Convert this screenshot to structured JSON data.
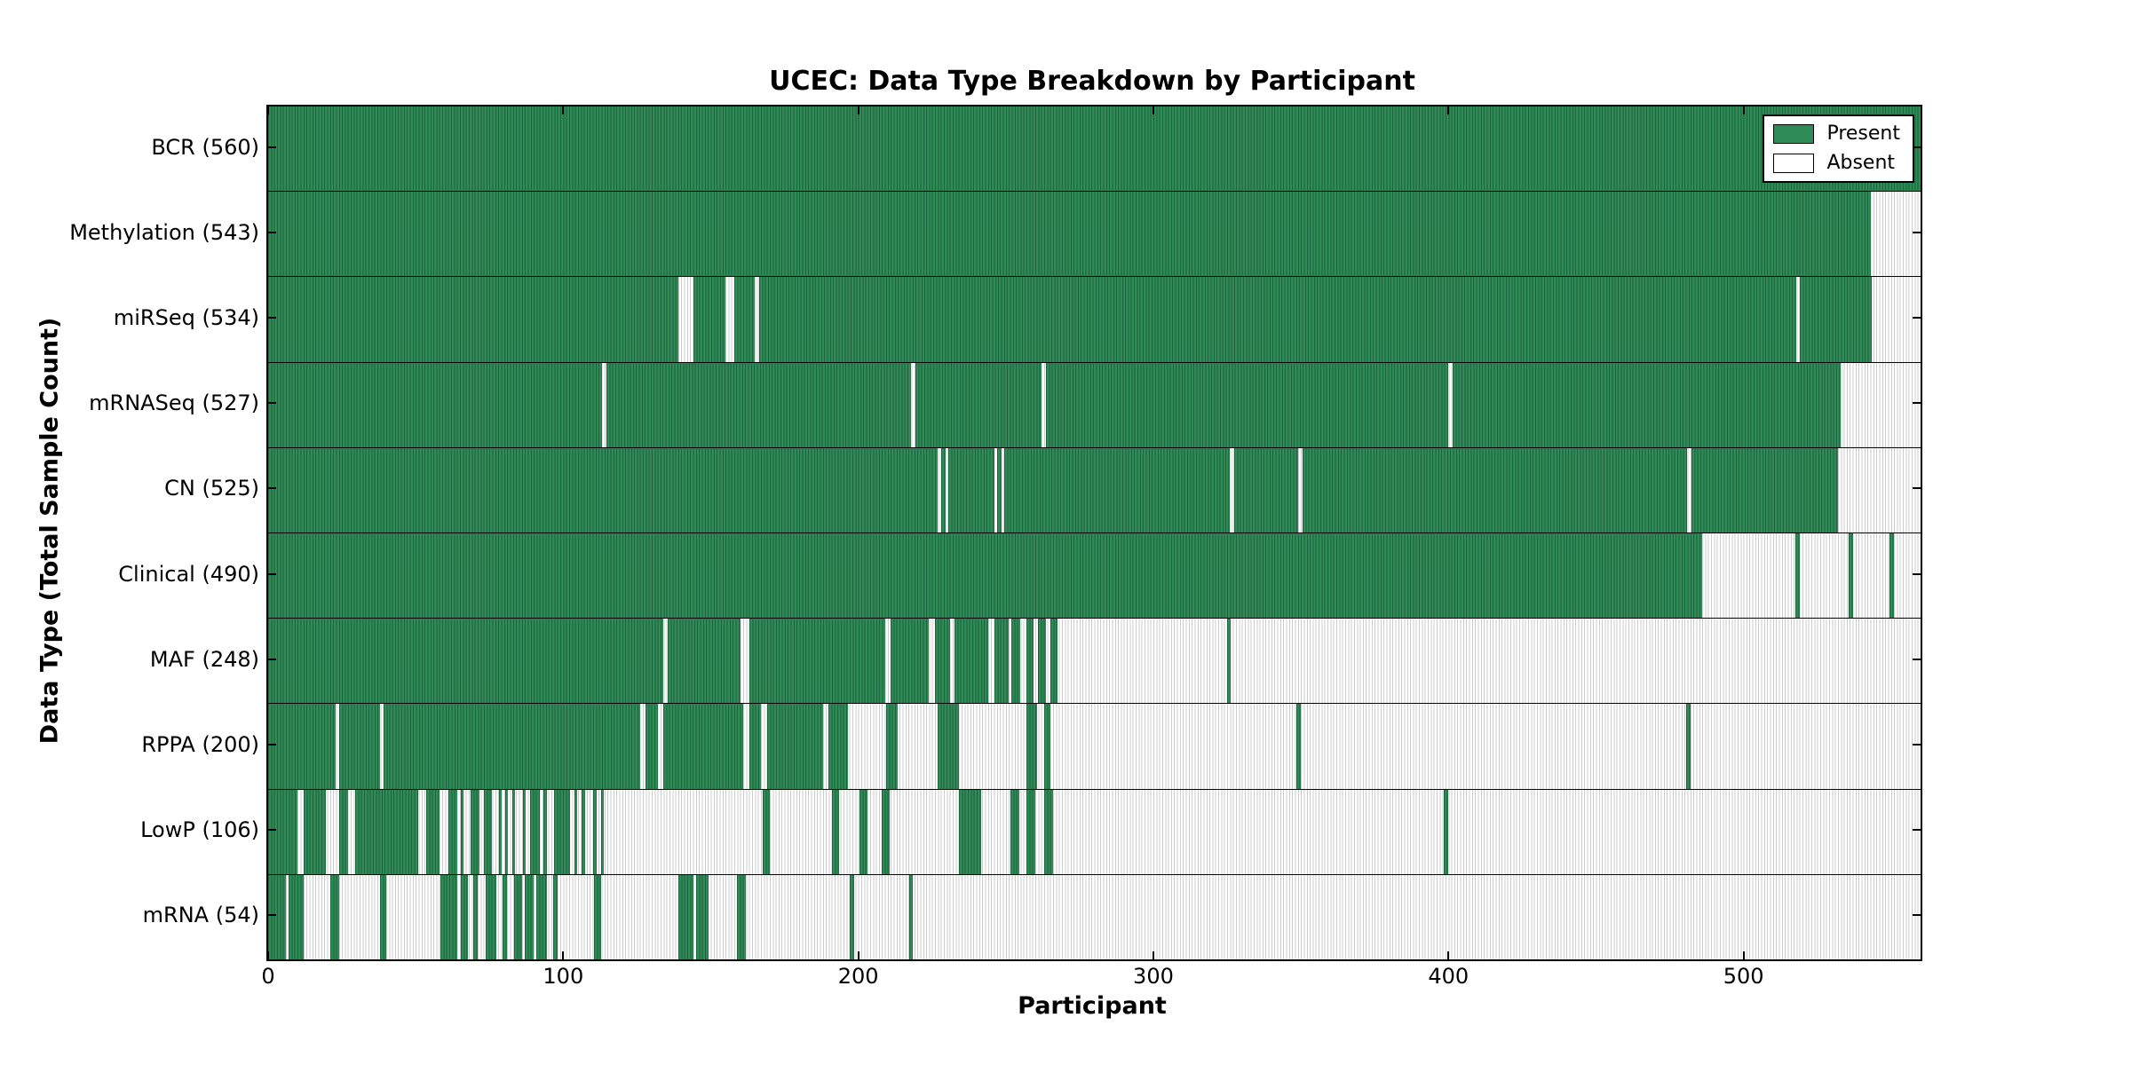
{
  "chart_data": {
    "type": "heatmap",
    "title": "UCEC: Data Type Breakdown by Participant",
    "xlabel": "Participant",
    "ylabel": "Data Type (Total Sample Count)",
    "xlim": [
      0,
      560
    ],
    "xticks": [
      0,
      100,
      200,
      300,
      400,
      500
    ],
    "grid": false,
    "legend_position": "upper right",
    "legend": [
      "Present",
      "Absent"
    ],
    "colors": {
      "present": "#2e8b57",
      "absent": "#ffffff"
    },
    "rows": [
      {
        "label": "BCR (560)",
        "data_type": "BCR",
        "count": 560,
        "present_ranges": [
          [
            0,
            560
          ]
        ]
      },
      {
        "label": "Methylation (543)",
        "data_type": "Methylation",
        "count": 543,
        "present_ranges": [
          [
            0,
            543
          ]
        ]
      },
      {
        "label": "miRSeq (534)",
        "data_type": "miRSeq",
        "count": 534,
        "present_ranges": [
          [
            0,
            139
          ],
          [
            144,
            155
          ],
          [
            158,
            165
          ],
          [
            166.5,
            518
          ],
          [
            519,
            543.5
          ]
        ]
      },
      {
        "label": "mRNASeq (527)",
        "data_type": "mRNASeq",
        "count": 527,
        "present_ranges": [
          [
            0,
            113
          ],
          [
            114.5,
            218
          ],
          [
            219.5,
            262
          ],
          [
            263.5,
            400
          ],
          [
            401.5,
            533
          ]
        ]
      },
      {
        "label": "CN (525)",
        "data_type": "CN",
        "count": 525,
        "present_ranges": [
          [
            0,
            227
          ],
          [
            228,
            229.5
          ],
          [
            230.5,
            246
          ],
          [
            247,
            248.5
          ],
          [
            249.5,
            326
          ],
          [
            327.5,
            349
          ],
          [
            350.5,
            481
          ],
          [
            482.5,
            532
          ]
        ]
      },
      {
        "label": "Clinical (490)",
        "data_type": "Clinical",
        "count": 490,
        "present_ranges": [
          [
            0,
            486
          ],
          [
            517.5,
            519
          ],
          [
            535.5,
            537
          ],
          [
            549.5,
            551
          ]
        ]
      },
      {
        "label": "MAF (248)",
        "data_type": "MAF",
        "count": 248,
        "present_ranges": [
          [
            0,
            134
          ],
          [
            135.5,
            160
          ],
          [
            163,
            209
          ],
          [
            211,
            224
          ],
          [
            226,
            231
          ],
          [
            232.5,
            244
          ],
          [
            246,
            251
          ],
          [
            252,
            255
          ],
          [
            257,
            259.5
          ],
          [
            261,
            263.5
          ],
          [
            265,
            267.5
          ],
          [
            325,
            326.3
          ]
        ]
      },
      {
        "label": "RPPA (200)",
        "data_type": "RPPA",
        "count": 200,
        "present_ranges": [
          [
            0,
            23
          ],
          [
            24,
            38
          ],
          [
            39,
            126
          ],
          [
            128,
            132
          ],
          [
            134,
            161
          ],
          [
            163,
            167
          ],
          [
            169,
            188
          ],
          [
            190,
            196.5
          ],
          [
            209.5,
            213.5
          ],
          [
            227,
            234
          ],
          [
            257,
            260.5
          ],
          [
            263,
            265
          ],
          [
            348.5,
            350
          ],
          [
            480.5,
            482
          ]
        ]
      },
      {
        "label": "LowP (106)",
        "data_type": "LowP",
        "count": 106,
        "present_ranges": [
          [
            0,
            10
          ],
          [
            12,
            19.5
          ],
          [
            24,
            27
          ],
          [
            29.5,
            51
          ],
          [
            53.5,
            58
          ],
          [
            61,
            64
          ],
          [
            65.2,
            66.2
          ],
          [
            68.7,
            71.7
          ],
          [
            73,
            75.7
          ],
          [
            78.2,
            79.2
          ],
          [
            80.4,
            81.4
          ],
          [
            82.7,
            83.7
          ],
          [
            86.4,
            87.4
          ],
          [
            88.7,
            92.2
          ],
          [
            93.4,
            94.4
          ],
          [
            97,
            102.4
          ],
          [
            103.7,
            104.7
          ],
          [
            106.2,
            107.4
          ],
          [
            110.2,
            111.2
          ],
          [
            112.7,
            113.7
          ],
          [
            167.5,
            170
          ],
          [
            191,
            193.5
          ],
          [
            200.5,
            203
          ],
          [
            208,
            210.5
          ],
          [
            234,
            241.5
          ],
          [
            251.5,
            254.5
          ],
          [
            257,
            260
          ],
          [
            263,
            266
          ],
          [
            398.5,
            400
          ]
        ]
      },
      {
        "label": "mRNA (54)",
        "data_type": "mRNA",
        "count": 54,
        "present_ranges": [
          [
            0,
            6
          ],
          [
            7,
            12
          ],
          [
            21,
            24
          ],
          [
            38,
            40
          ],
          [
            58.5,
            64
          ],
          [
            65.3,
            67.6
          ],
          [
            69.5,
            71
          ],
          [
            73.6,
            77.4
          ],
          [
            79.5,
            81
          ],
          [
            83.4,
            86
          ],
          [
            87,
            90
          ],
          [
            91,
            94.6
          ],
          [
            96.5,
            98
          ],
          [
            110.5,
            112.7
          ],
          [
            139,
            144
          ],
          [
            145,
            149.4
          ],
          [
            159,
            162
          ],
          [
            197,
            198.5
          ],
          [
            217.4,
            218.6
          ]
        ]
      }
    ]
  }
}
